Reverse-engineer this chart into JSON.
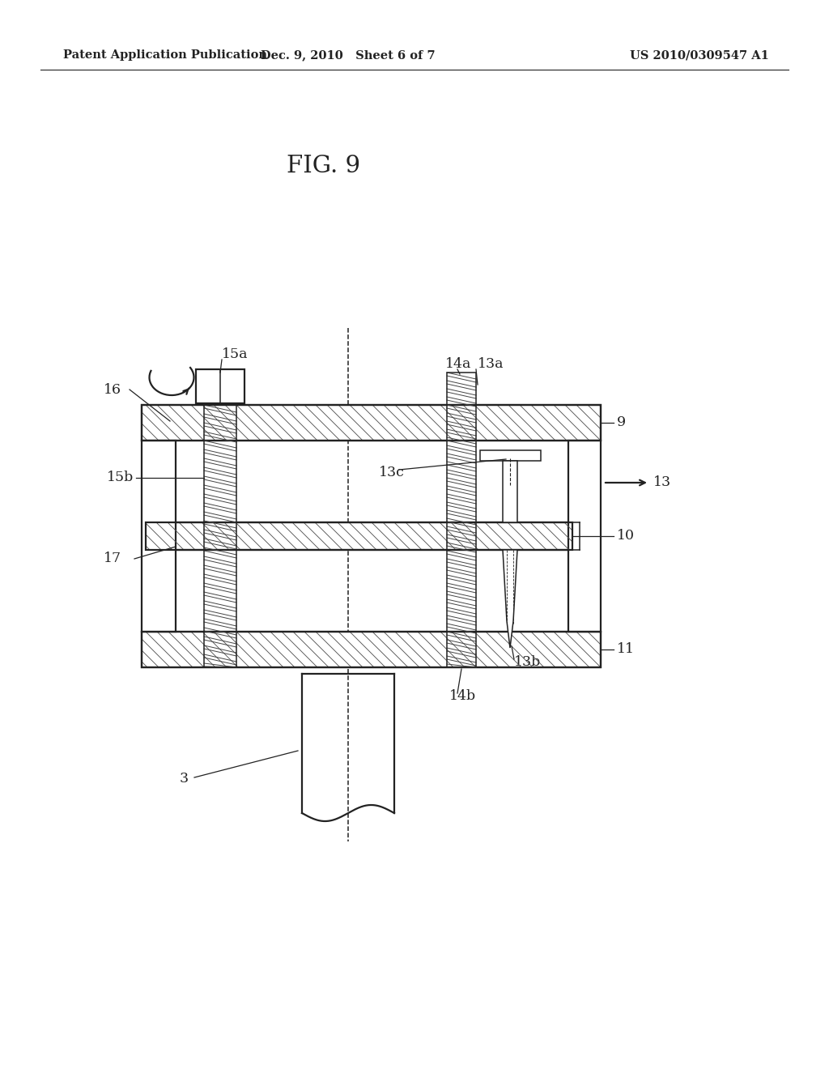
{
  "bg_color": "#ffffff",
  "line_color": "#222222",
  "title": "FIG. 9",
  "header_left": "Patent Application Publication",
  "header_mid": "Dec. 9, 2010   Sheet 6 of 7",
  "header_right": "US 2010/0309547 A1",
  "header_fontsize": 10.5,
  "title_fontsize": 21,
  "label_fontsize": 12.5
}
